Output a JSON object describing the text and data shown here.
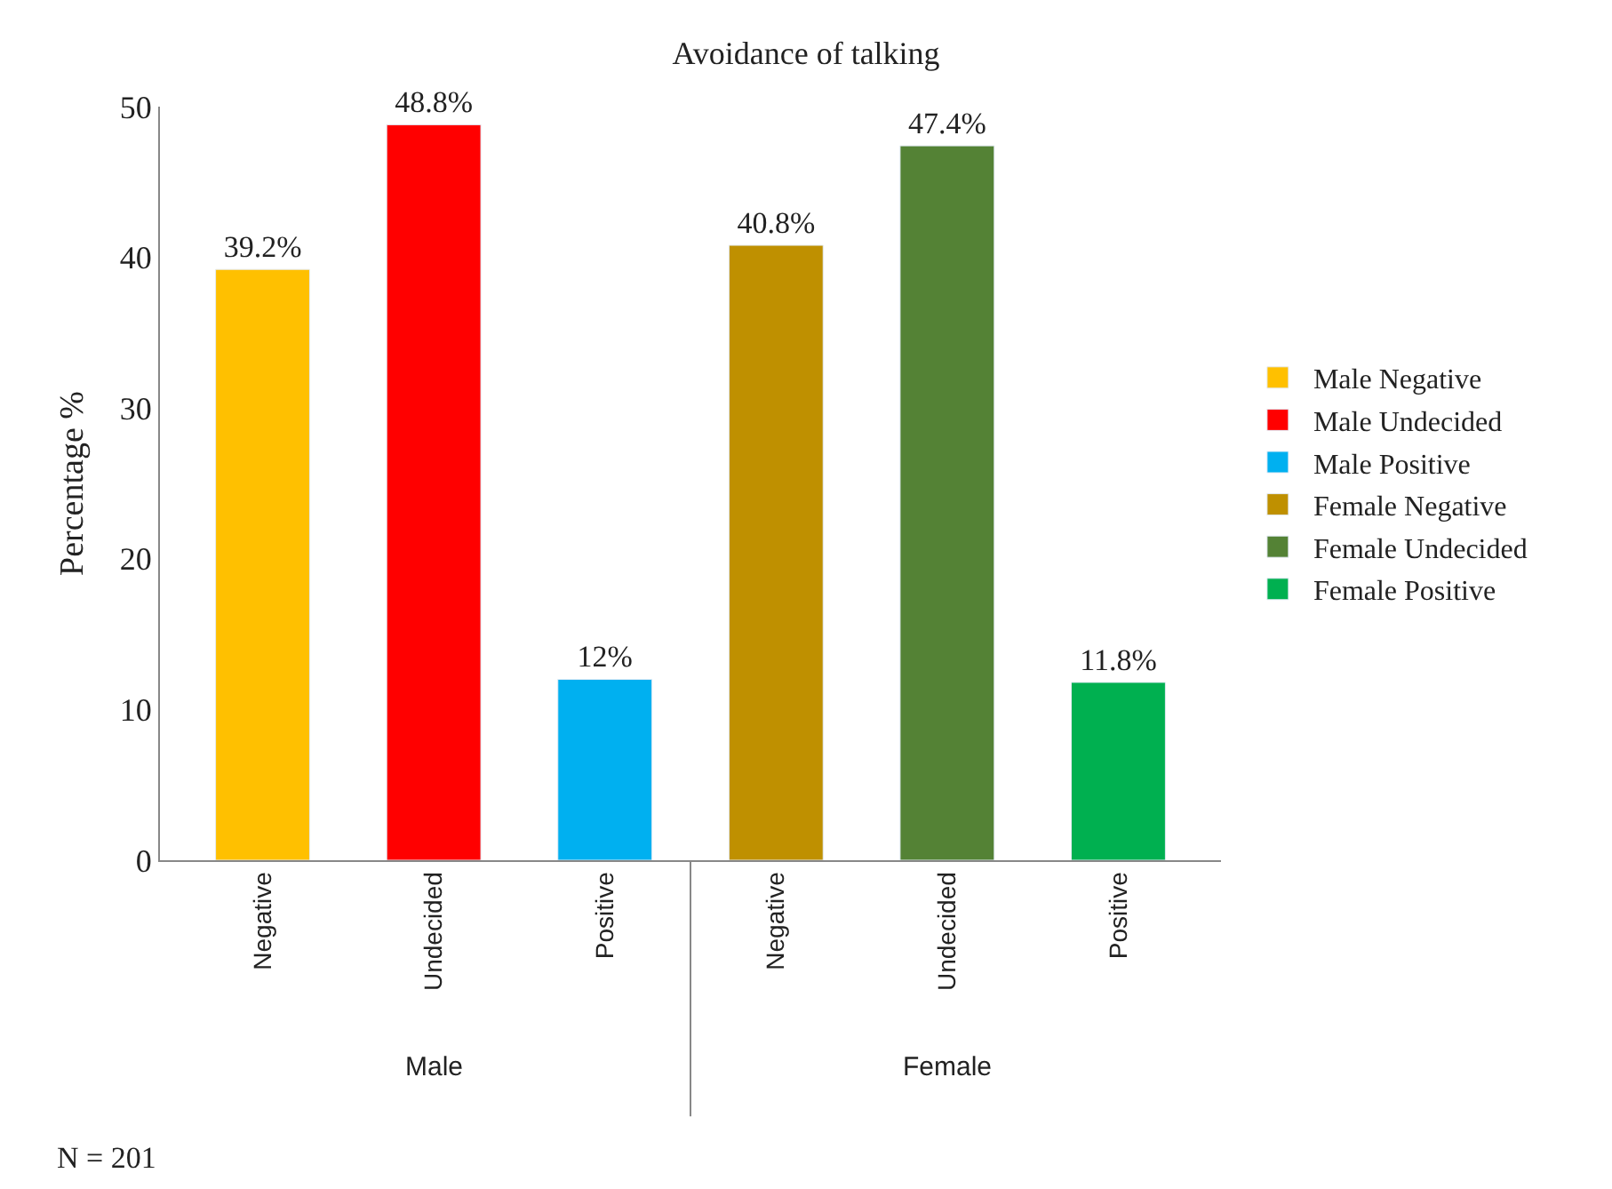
{
  "chart_data": {
    "type": "bar",
    "title": "Avoidance of talking",
    "ylabel": "Percentage %",
    "categories": [
      "Negative",
      "Undecided",
      "Positive",
      "Negative",
      "Undecided",
      "Positive"
    ],
    "series": [
      {
        "name": "Male Negative",
        "color": "#ffc000",
        "values": [
          39.2,
          null,
          null,
          null,
          null,
          null
        ],
        "value_labels": [
          "39.2%",
          null,
          null,
          null,
          null,
          null
        ]
      },
      {
        "name": "Male Undecided",
        "color": "#ff0000",
        "values": [
          null,
          48.8,
          null,
          null,
          null,
          null
        ],
        "value_labels": [
          null,
          "48.8%",
          null,
          null,
          null,
          null
        ]
      },
      {
        "name": "Male Positive",
        "color": "#00b0f0",
        "values": [
          null,
          null,
          12,
          null,
          null,
          null
        ],
        "value_labels": [
          null,
          null,
          "12%",
          null,
          null,
          null
        ]
      },
      {
        "name": "Female Negative",
        "color": "#bf9000",
        "values": [
          null,
          null,
          null,
          40.8,
          null,
          null
        ],
        "value_labels": [
          null,
          null,
          null,
          "40.8%",
          null,
          null
        ]
      },
      {
        "name": "Female Undecided",
        "color": "#548235",
        "values": [
          null,
          null,
          null,
          null,
          47.4,
          null
        ],
        "value_labels": [
          null,
          null,
          null,
          null,
          "47.4%",
          null
        ]
      },
      {
        "name": "Female Positive",
        "color": "#00b050",
        "values": [
          null,
          null,
          null,
          null,
          null,
          11.8
        ],
        "value_labels": [
          null,
          null,
          null,
          null,
          null,
          "11.8%"
        ]
      }
    ],
    "ylim": [
      0,
      50
    ],
    "yticks": [
      0,
      10,
      20,
      30,
      40,
      50
    ],
    "legend": "right",
    "annotations": [
      "Male",
      "Female",
      "N = 201"
    ]
  }
}
